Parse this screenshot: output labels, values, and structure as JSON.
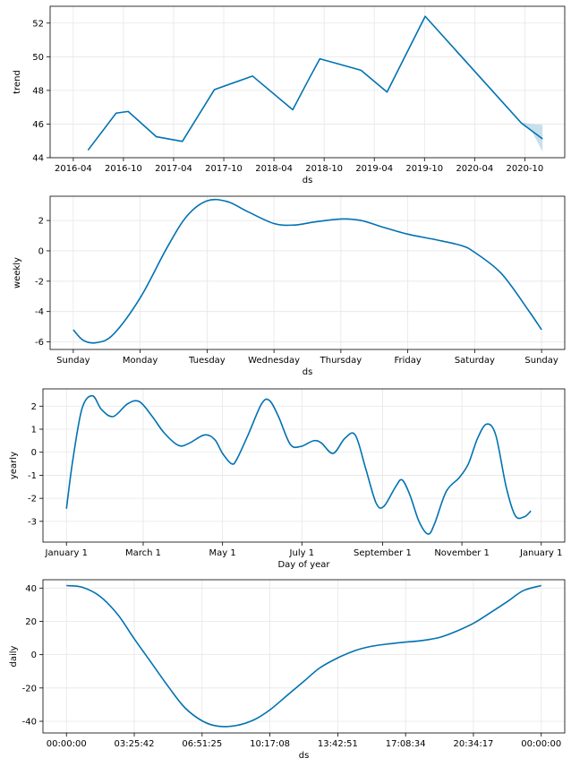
{
  "colors": {
    "line": "#0072B2",
    "band": "#0072B2",
    "grid": "#e6e6e6"
  },
  "chart_data": [
    {
      "type": "line",
      "name": "trend",
      "xlabel": "ds",
      "ylabel": "trend",
      "xlim": [
        2016.333,
        2021.0
      ],
      "ylim": [
        44.0,
        53.0
      ],
      "xticks": [
        {
          "v": 2016.333,
          "label": "2016-04"
        },
        {
          "v": 2016.833,
          "label": "2016-10"
        },
        {
          "v": 2017.333,
          "label": "2017-04"
        },
        {
          "v": 2017.833,
          "label": "2017-10"
        },
        {
          "v": 2018.333,
          "label": "2018-04"
        },
        {
          "v": 2018.833,
          "label": "2018-10"
        },
        {
          "v": 2019.333,
          "label": "2019-04"
        },
        {
          "v": 2019.833,
          "label": "2019-10"
        },
        {
          "v": 2020.333,
          "label": "2020-04"
        },
        {
          "v": 2020.833,
          "label": "2020-10"
        }
      ],
      "yticks": [
        44,
        46,
        48,
        50,
        52
      ],
      "points": [
        [
          2016.48,
          44.45
        ],
        [
          2016.76,
          46.65
        ],
        [
          2016.88,
          46.75
        ],
        [
          2017.16,
          45.25
        ],
        [
          2017.42,
          44.97
        ],
        [
          2017.74,
          48.05
        ],
        [
          2018.12,
          48.85
        ],
        [
          2018.52,
          46.85
        ],
        [
          2018.67,
          48.55
        ],
        [
          2018.79,
          49.88
        ],
        [
          2019.2,
          49.2
        ],
        [
          2019.46,
          47.9
        ],
        [
          2019.84,
          52.4
        ],
        [
          2020.8,
          46.05
        ],
        [
          2021.01,
          45.12
        ]
      ],
      "band": {
        "upper": [
          [
            2020.8,
            46.1
          ],
          [
            2020.9,
            46.0
          ],
          [
            2021.01,
            45.95
          ]
        ],
        "lower": [
          [
            2020.8,
            46.0
          ],
          [
            2020.9,
            45.6
          ],
          [
            2021.01,
            44.35
          ]
        ]
      }
    },
    {
      "type": "line",
      "name": "weekly",
      "xlabel": "ds",
      "ylabel": "weekly",
      "xlim": [
        0,
        7
      ],
      "ylim": [
        -6.5,
        3.6
      ],
      "xticks": [
        {
          "v": 0,
          "label": "Sunday"
        },
        {
          "v": 1,
          "label": "Monday"
        },
        {
          "v": 2,
          "label": "Tuesday"
        },
        {
          "v": 3,
          "label": "Wednesday"
        },
        {
          "v": 4,
          "label": "Thursday"
        },
        {
          "v": 5,
          "label": "Friday"
        },
        {
          "v": 6,
          "label": "Saturday"
        },
        {
          "v": 7,
          "label": "Sunday"
        }
      ],
      "yticks": [
        -6,
        -4,
        -2,
        0,
        2
      ],
      "points": [
        [
          0,
          -5.2
        ],
        [
          0.15,
          -5.9
        ],
        [
          0.35,
          -6.05
        ],
        [
          0.6,
          -5.5
        ],
        [
          1.0,
          -3.1
        ],
        [
          1.4,
          0.2
        ],
        [
          1.7,
          2.3
        ],
        [
          2.0,
          3.3
        ],
        [
          2.3,
          3.25
        ],
        [
          2.6,
          2.6
        ],
        [
          3.0,
          1.8
        ],
        [
          3.3,
          1.7
        ],
        [
          3.6,
          1.9
        ],
        [
          4.0,
          2.1
        ],
        [
          4.3,
          2.0
        ],
        [
          4.6,
          1.6
        ],
        [
          5.0,
          1.1
        ],
        [
          5.4,
          0.75
        ],
        [
          5.8,
          0.35
        ],
        [
          6.0,
          -0.1
        ],
        [
          6.4,
          -1.5
        ],
        [
          6.8,
          -3.9
        ],
        [
          7.0,
          -5.2
        ]
      ]
    },
    {
      "type": "line",
      "name": "yearly",
      "xlabel": "Day of year",
      "ylabel": "yearly",
      "xlim": [
        0,
        365
      ],
      "ylim": [
        -3.9,
        2.75
      ],
      "xticks": [
        {
          "v": 0,
          "label": "January 1"
        },
        {
          "v": 59,
          "label": "March 1"
        },
        {
          "v": 120,
          "label": "May 1"
        },
        {
          "v": 181,
          "label": "July 1"
        },
        {
          "v": 243,
          "label": "September 1"
        },
        {
          "v": 304,
          "label": "November 1"
        },
        {
          "v": 365,
          "label": "January 1"
        }
      ],
      "yticks": [
        -3,
        -2,
        -1,
        0,
        1,
        2
      ],
      "points": [
        [
          0,
          -2.45
        ],
        [
          5,
          -0.3
        ],
        [
          12,
          1.9
        ],
        [
          20,
          2.45
        ],
        [
          27,
          1.85
        ],
        [
          36,
          1.55
        ],
        [
          47,
          2.1
        ],
        [
          56,
          2.2
        ],
        [
          66,
          1.55
        ],
        [
          75,
          0.85
        ],
        [
          86,
          0.3
        ],
        [
          94,
          0.38
        ],
        [
          106,
          0.75
        ],
        [
          114,
          0.55
        ],
        [
          120,
          -0.05
        ],
        [
          127,
          -0.5
        ],
        [
          131,
          -0.3
        ],
        [
          140,
          0.8
        ],
        [
          150,
          2.1
        ],
        [
          156,
          2.25
        ],
        [
          163,
          1.55
        ],
        [
          172,
          0.35
        ],
        [
          180,
          0.25
        ],
        [
          190,
          0.5
        ],
        [
          196,
          0.4
        ],
        [
          205,
          -0.05
        ],
        [
          214,
          0.6
        ],
        [
          222,
          0.75
        ],
        [
          230,
          -0.7
        ],
        [
          238,
          -2.2
        ],
        [
          244,
          -2.35
        ],
        [
          253,
          -1.5
        ],
        [
          258,
          -1.2
        ],
        [
          264,
          -1.85
        ],
        [
          271,
          -3.0
        ],
        [
          278,
          -3.55
        ],
        [
          283,
          -3.1
        ],
        [
          292,
          -1.7
        ],
        [
          302,
          -1.1
        ],
        [
          309,
          -0.5
        ],
        [
          316,
          0.6
        ],
        [
          323,
          1.22
        ],
        [
          330,
          0.75
        ],
        [
          338,
          -1.5
        ],
        [
          345,
          -2.75
        ],
        [
          352,
          -2.8
        ],
        [
          357,
          -2.55
        ]
      ]
    },
    {
      "type": "line",
      "name": "daily",
      "xlabel": "ds",
      "ylabel": "daily",
      "xlim": [
        0,
        24
      ],
      "ylim": [
        -47,
        45
      ],
      "xticks": [
        {
          "v": 0,
          "label": "00:00:00"
        },
        {
          "v": 3.428,
          "label": "03:25:42"
        },
        {
          "v": 6.857,
          "label": "06:51:25"
        },
        {
          "v": 10.285,
          "label": "10:17:08"
        },
        {
          "v": 13.714,
          "label": "13:42:51"
        },
        {
          "v": 17.143,
          "label": "17:08:34"
        },
        {
          "v": 20.571,
          "label": "20:34:17"
        },
        {
          "v": 24,
          "label": "00:00:00"
        }
      ],
      "yticks": [
        -40,
        -20,
        0,
        20,
        40
      ],
      "points": [
        [
          0,
          41.5
        ],
        [
          0.8,
          40.5
        ],
        [
          1.7,
          35
        ],
        [
          2.6,
          24
        ],
        [
          3.4,
          10
        ],
        [
          4.3,
          -5
        ],
        [
          5.2,
          -20
        ],
        [
          6.0,
          -32
        ],
        [
          6.9,
          -40
        ],
        [
          7.7,
          -43
        ],
        [
          8.6,
          -42.5
        ],
        [
          9.5,
          -39
        ],
        [
          10.3,
          -33
        ],
        [
          11.1,
          -25
        ],
        [
          12.0,
          -16
        ],
        [
          12.8,
          -8
        ],
        [
          13.7,
          -2
        ],
        [
          14.6,
          2.5
        ],
        [
          15.4,
          5
        ],
        [
          16.3,
          6.5
        ],
        [
          17.1,
          7.5
        ],
        [
          18.0,
          8.5
        ],
        [
          18.9,
          10.5
        ],
        [
          19.7,
          14
        ],
        [
          20.6,
          19
        ],
        [
          21.4,
          25
        ],
        [
          22.3,
          32
        ],
        [
          23.1,
          38.5
        ],
        [
          24,
          41.5
        ]
      ]
    }
  ]
}
